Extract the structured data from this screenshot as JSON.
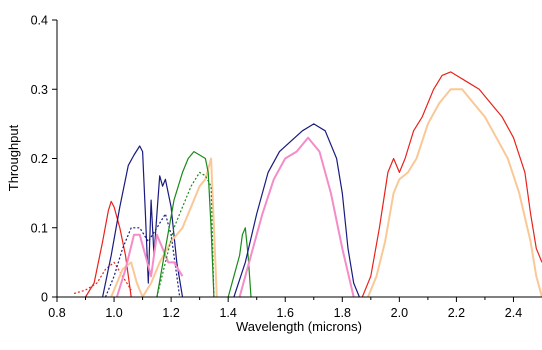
{
  "chart_data": {
    "type": "line",
    "title": "",
    "xlabel": "Wavelength (microns)",
    "ylabel": "Throughput",
    "xlim": [
      0.8,
      2.5
    ],
    "ylim": [
      0,
      0.4
    ],
    "x_ticks": [
      "0.8",
      "1.0",
      "1.2",
      "1.4",
      "1.6",
      "1.8",
      "2.0",
      "2.2",
      "2.4"
    ],
    "x_tick_values": [
      0.8,
      1.0,
      1.2,
      1.4,
      1.6,
      1.8,
      2.0,
      2.2,
      2.4
    ],
    "y_ticks": [
      "0",
      "0.1",
      "0.2",
      "0.3",
      "0.4"
    ],
    "y_tick_values": [
      0,
      0.1,
      0.2,
      0.3,
      0.4
    ],
    "grid": false,
    "legend": "none",
    "series": [
      {
        "color": "#e8231c",
        "style": "solid",
        "x": [
          0.9,
          0.93,
          0.96,
          0.98,
          0.99,
          1.0,
          1.02,
          1.04,
          1.06
        ],
        "y": [
          0.0,
          0.02,
          0.08,
          0.125,
          0.138,
          0.13,
          0.1,
          0.06,
          0.0
        ]
      },
      {
        "color": "#e8231c",
        "style": "dotted",
        "x": [
          0.86,
          0.9,
          0.94,
          0.97,
          1.0,
          1.03,
          1.06
        ],
        "y": [
          0.005,
          0.01,
          0.02,
          0.04,
          0.05,
          0.03,
          0.01
        ]
      },
      {
        "color": "#1a1a80",
        "style": "solid",
        "x": [
          0.96,
          0.99,
          1.02,
          1.05,
          1.07,
          1.09,
          1.1,
          1.11,
          1.12,
          1.13,
          1.14,
          1.15,
          1.16,
          1.17,
          1.18,
          1.2,
          1.22,
          1.24
        ],
        "y": [
          0.0,
          0.06,
          0.13,
          0.19,
          0.205,
          0.218,
          0.21,
          0.12,
          0.02,
          0.14,
          0.06,
          0.12,
          0.175,
          0.16,
          0.17,
          0.13,
          0.05,
          0.0
        ]
      },
      {
        "color": "#1a1a80",
        "style": "dotted",
        "x": [
          0.97,
          1.0,
          1.03,
          1.06,
          1.09,
          1.12,
          1.15,
          1.18,
          1.2,
          1.23
        ],
        "y": [
          0.0,
          0.03,
          0.07,
          0.1,
          0.1,
          0.08,
          0.1,
          0.12,
          0.09,
          0.0
        ]
      },
      {
        "color": "#fac896",
        "style": "solid",
        "x": [
          0.99,
          1.03,
          1.06,
          1.08,
          1.1,
          1.13,
          1.16,
          1.2,
          1.24,
          1.28,
          1.3,
          1.32,
          1.34,
          1.36
        ],
        "y": [
          0.0,
          0.04,
          0.05,
          0.02,
          0.0,
          0.02,
          0.05,
          0.08,
          0.1,
          0.14,
          0.16,
          0.17,
          0.2,
          0.0
        ]
      },
      {
        "color": "#f48cc8",
        "style": "solid",
        "x": [
          1.01,
          1.04,
          1.07,
          1.09,
          1.11,
          1.13,
          1.15,
          1.17,
          1.19,
          1.21,
          1.24
        ],
        "y": [
          0.0,
          0.04,
          0.09,
          0.09,
          0.06,
          0.03,
          0.09,
          0.07,
          0.05,
          0.05,
          0.03
        ]
      },
      {
        "color": "#1a8a1a",
        "style": "solid",
        "x": [
          1.15,
          1.18,
          1.21,
          1.24,
          1.26,
          1.28,
          1.3,
          1.32,
          1.33,
          1.34,
          1.35
        ],
        "y": [
          0.0,
          0.07,
          0.14,
          0.18,
          0.2,
          0.21,
          0.205,
          0.2,
          0.18,
          0.1,
          0.0
        ]
      },
      {
        "color": "#1a8a1a",
        "style": "dotted",
        "x": [
          1.15,
          1.18,
          1.21,
          1.24,
          1.27,
          1.3,
          1.32,
          1.34,
          1.35
        ],
        "y": [
          0.0,
          0.05,
          0.1,
          0.13,
          0.16,
          0.18,
          0.175,
          0.16,
          0.0
        ]
      },
      {
        "color": "#1a8a1a",
        "style": "solid",
        "x": [
          1.4,
          1.42,
          1.44,
          1.45,
          1.46,
          1.47,
          1.48
        ],
        "y": [
          0.0,
          0.03,
          0.06,
          0.09,
          0.1,
          0.06,
          0.0
        ]
      },
      {
        "color": "#1a1a80",
        "style": "solid",
        "x": [
          1.42,
          1.46,
          1.5,
          1.54,
          1.58,
          1.62,
          1.66,
          1.7,
          1.74,
          1.78,
          1.8,
          1.82,
          1.84,
          1.86
        ],
        "y": [
          0.0,
          0.05,
          0.12,
          0.18,
          0.21,
          0.225,
          0.24,
          0.25,
          0.24,
          0.2,
          0.15,
          0.07,
          0.02,
          0.0
        ]
      },
      {
        "color": "#f48cc8",
        "style": "solid",
        "x": [
          1.44,
          1.48,
          1.52,
          1.56,
          1.6,
          1.64,
          1.68,
          1.72,
          1.76,
          1.8,
          1.84
        ],
        "y": [
          0.0,
          0.06,
          0.12,
          0.17,
          0.2,
          0.21,
          0.23,
          0.21,
          0.15,
          0.07,
          0.0
        ]
      },
      {
        "color": "#e8231c",
        "style": "solid",
        "x": [
          1.87,
          1.9,
          1.93,
          1.96,
          1.98,
          2.0,
          2.02,
          2.05,
          2.08,
          2.12,
          2.15,
          2.18,
          2.2,
          2.24,
          2.28,
          2.32,
          2.36,
          2.4,
          2.44,
          2.46,
          2.48,
          2.5
        ],
        "y": [
          0.0,
          0.03,
          0.1,
          0.18,
          0.2,
          0.18,
          0.2,
          0.24,
          0.26,
          0.3,
          0.32,
          0.325,
          0.32,
          0.31,
          0.3,
          0.28,
          0.26,
          0.23,
          0.18,
          0.12,
          0.07,
          0.05
        ]
      },
      {
        "color": "#fac896",
        "style": "solid",
        "x": [
          1.89,
          1.92,
          1.95,
          1.98,
          2.0,
          2.03,
          2.06,
          2.1,
          2.14,
          2.18,
          2.22,
          2.26,
          2.3,
          2.34,
          2.38,
          2.42,
          2.46,
          2.48,
          2.5
        ],
        "y": [
          0.0,
          0.03,
          0.08,
          0.15,
          0.17,
          0.18,
          0.2,
          0.25,
          0.28,
          0.3,
          0.3,
          0.28,
          0.26,
          0.23,
          0.2,
          0.15,
          0.08,
          0.03,
          0.0
        ]
      }
    ]
  }
}
